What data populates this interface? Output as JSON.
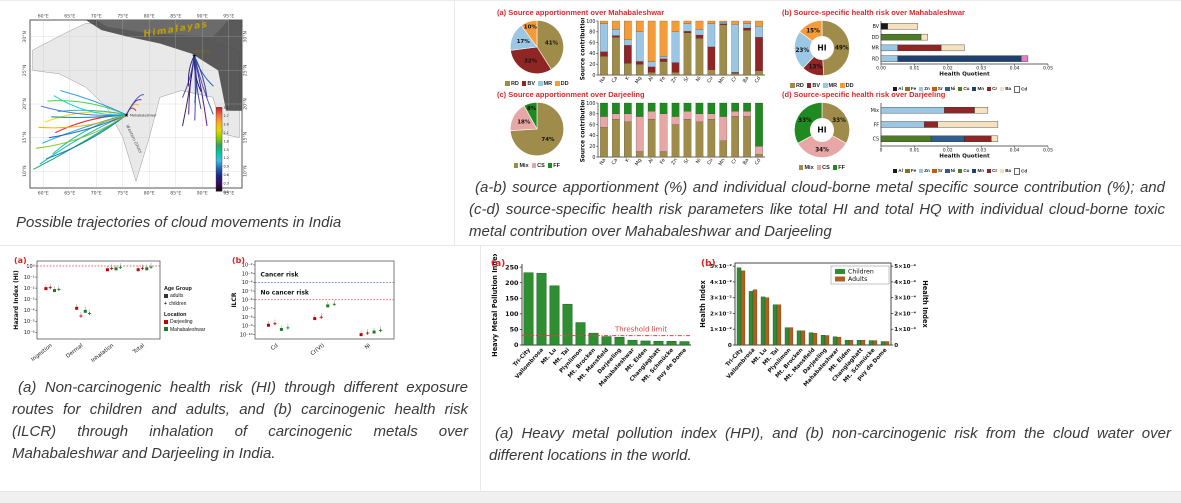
{
  "accent_red": "#e0262b",
  "panels": {
    "map": {
      "caption": "Possible trajectories of cloud movements in India"
    },
    "source": {
      "a_title": "(a)  Source apportionment over Mahabaleshwar",
      "b_title": "(b)  Source-specific health risk over Mahabaleshwar",
      "c_title": "(c)  Source apportionment over Darjeeling",
      "d_title": "(d)  Source-specific health risk over Darjeeling",
      "caption": "(a-b) source apportionment (%) and individual cloud-borne metal specific source contribution (%); and (c-d) source-specific health risk parameters like total HI and total HQ with individual cloud-borne toxic metal contribution over Mahabaleshwar and Darjeeling"
    },
    "risk": {
      "caption": "(a) Non-carcinogenic health risk (HI) through different exposure routes for children and adults, and (b) carcinogenic health risk (ILCR) through inhalation of carcinogenic metals over Mahabaleshwar and Darjeeling in India.",
      "legend": {
        "age_header": "Age Group",
        "age_items": [
          "adults",
          "children"
        ],
        "loc_header": "Location",
        "loc_items": [
          {
            "label": "Darjeeling",
            "color": "#c00000"
          },
          {
            "label": "Mahabaleshwar",
            "color": "#1e7a1e"
          }
        ]
      }
    },
    "hpi": {
      "caption": "(a) Heavy metal pollution index (HPI), and (b) non-carcinogenic risk from the cloud water over different locations in the world."
    }
  },
  "chart_data": {
    "map": {
      "type": "trajectory-map",
      "lon_ticks": [
        "60°E",
        "65°E",
        "70°E",
        "75°E",
        "80°E",
        "85°E",
        "90°E",
        "95°E"
      ],
      "lat_ticks": [
        "30°N",
        "25°N",
        "20°N",
        "15°N",
        "10°N"
      ],
      "labels": {
        "himalayas": "Himalayas",
        "darjeeling": "Darjeeling",
        "mahabaleshwar": "Mahabaleshwar",
        "western_ghats": "Western Ghats"
      },
      "colorbar": {
        "ticks": [
          "3.0",
          "2.7",
          "2.4",
          "2.1",
          "1.8",
          "1.5",
          "1.2",
          "0.9",
          "0.6",
          "0.3",
          "0.0"
        ],
        "colors": [
          "#d7191c",
          "#f46d43",
          "#fdae17",
          "#e3d800",
          "#8cce00",
          "#2ca25f",
          "#00c9a7",
          "#41b6e6",
          "#2166ac",
          "#20208a",
          "#3b0a59",
          "#0a0a0a"
        ]
      }
    },
    "src_maha": {
      "type": "pie+stacked-bar",
      "pie": {
        "labels": [
          "RD",
          "BV",
          "MR",
          "DD"
        ],
        "values": [
          41,
          32,
          17,
          10
        ],
        "colors": [
          "#a08c4a",
          "#8f2525",
          "#9cc7e4",
          "#f49c3a"
        ]
      },
      "bars": {
        "ylabel": "Source contribution",
        "ylim": [
          0,
          100
        ],
        "yticks": [
          0,
          20,
          40,
          60,
          80,
          100
        ],
        "categories": [
          "Na",
          "Ca",
          "K",
          "Mg",
          "Al",
          "Fe",
          "Zn",
          "Sr",
          "Ni",
          "Cu",
          "Mn",
          "Cr",
          "Ba",
          "Cd"
        ],
        "series": [
          {
            "name": "RD",
            "color": "#a08c4a",
            "values": [
              35,
              70,
              22,
              20,
              5,
              25,
              5,
              78,
              68,
              10,
              93,
              3,
              83,
              8
            ]
          },
          {
            "name": "BV",
            "color": "#8f2525",
            "values": [
              8,
              3,
              33,
              5,
              10,
              5,
              18,
              3,
              6,
              42,
              2,
              2,
              4,
              62
            ]
          },
          {
            "name": "MR",
            "color": "#9cc7e4",
            "values": [
              52,
              12,
              10,
              55,
              10,
              5,
              57,
              14,
              11,
              43,
              3,
              89,
              8,
              20
            ]
          },
          {
            "name": "DD",
            "color": "#f49c3a",
            "values": [
              5,
              15,
              35,
              20,
              75,
              65,
              20,
              5,
              15,
              5,
              2,
              6,
              5,
              10
            ]
          }
        ]
      }
    },
    "risk_maha": {
      "type": "donut+hbar",
      "donut": {
        "center": "HI",
        "labels": [
          "RD",
          "BV",
          "MR",
          "DD"
        ],
        "values": [
          49,
          13,
          23,
          15
        ],
        "colors": [
          "#a08c4a",
          "#8f2525",
          "#9cc7e4",
          "#f49c3a"
        ]
      },
      "hbar": {
        "xlabel": "Health Quotient",
        "xmax": 0.05,
        "tick_labels": [
          "0.00",
          "0.01",
          "0.02",
          "0.03",
          "0.04",
          "0.05"
        ],
        "rows": [
          {
            "label": "BV",
            "segs": [
              {
                "v": 0.002,
                "c": "#1a1a1a"
              },
              {
                "v": 0.009,
                "c": "#f3e1bf"
              }
            ]
          },
          {
            "label": "DD",
            "segs": [
              {
                "v": 0.012,
                "c": "#4f7a28"
              },
              {
                "v": 0.002,
                "c": "#f3e1bf"
              }
            ]
          },
          {
            "label": "MR",
            "segs": [
              {
                "v": 0.005,
                "c": "#9cc7e4"
              },
              {
                "v": 0.013,
                "c": "#8f2525"
              },
              {
                "v": 0.007,
                "c": "#f3e1bf"
              }
            ]
          },
          {
            "label": "RD",
            "segs": [
              {
                "v": 0.005,
                "c": "#9cc7e4"
              },
              {
                "v": 0.037,
                "c": "#1f3f6e"
              },
              {
                "v": 0.002,
                "c": "#e87cc0"
              }
            ]
          }
        ]
      },
      "metals": {
        "labels": [
          "Al",
          "Fe",
          "Zn",
          "Sr",
          "Ni",
          "Cu",
          "Mn",
          "Cr",
          "Ba",
          "Cd"
        ],
        "colors": [
          "#1a1a1a",
          "#8c6d1f",
          "#9cc7e4",
          "#c55a11",
          "#2e5e8c",
          "#4f7a28",
          "#1f3f6e",
          "#8f2525",
          "#f3e1bf",
          "#ffffff"
        ]
      }
    },
    "src_darj": {
      "type": "pie+stacked-bar",
      "pie": {
        "labels": [
          "Mix",
          "CS",
          "FF"
        ],
        "values": [
          74,
          18,
          8
        ],
        "colors": [
          "#a08c4a",
          "#e8a7a7",
          "#1f8a1f"
        ]
      },
      "bars": {
        "ylabel": "Source contribution",
        "ylim": [
          0,
          100
        ],
        "yticks": [
          0,
          20,
          40,
          60,
          80,
          100
        ],
        "categories": [
          "Na",
          "Ca",
          "K",
          "Mg",
          "Al",
          "Fe",
          "Zn",
          "Sr",
          "Ni",
          "Cu",
          "Mn",
          "Cr",
          "Ba",
          "Cd"
        ],
        "series": [
          {
            "name": "Mix",
            "color": "#a08c4a",
            "values": [
              55,
              70,
              65,
              10,
              70,
              10,
              60,
              70,
              65,
              70,
              30,
              75,
              75,
              5
            ]
          },
          {
            "name": "CS",
            "color": "#e8a7a7",
            "values": [
              20,
              10,
              15,
              65,
              15,
              70,
              15,
              15,
              15,
              10,
              45,
              10,
              10,
              15
            ]
          },
          {
            "name": "FF",
            "color": "#1f8a1f",
            "values": [
              25,
              20,
              20,
              25,
              15,
              20,
              25,
              15,
              20,
              20,
              25,
              15,
              15,
              80
            ]
          }
        ]
      }
    },
    "risk_darj": {
      "type": "donut+hbar",
      "donut": {
        "center": "HI",
        "labels": [
          "Mix",
          "CS",
          "FF"
        ],
        "values": [
          33,
          34,
          33
        ],
        "colors": [
          "#a08c4a",
          "#e8a7a7",
          "#1f8a1f"
        ]
      },
      "hbar": {
        "xlabel": "Health Quotient",
        "xmax": 0.05,
        "tick_labels": [
          "0",
          "0.01",
          "0.02",
          "0.03",
          "0.04",
          "0.05"
        ],
        "rows": [
          {
            "label": "Mix",
            "segs": [
              {
                "v": 0.019,
                "c": "#9cc7e4"
              },
              {
                "v": 0.009,
                "c": "#8f2525"
              },
              {
                "v": 0.004,
                "c": "#f3e1bf"
              }
            ]
          },
          {
            "label": "FF",
            "segs": [
              {
                "v": 0.013,
                "c": "#9cc7e4"
              },
              {
                "v": 0.004,
                "c": "#8f2525"
              },
              {
                "v": 0.018,
                "c": "#f3e1bf"
              }
            ]
          },
          {
            "label": "CS",
            "segs": [
              {
                "v": 0.015,
                "c": "#4f7a28"
              },
              {
                "v": 0.01,
                "c": "#2e5e8c"
              },
              {
                "v": 0.008,
                "c": "#8f2525"
              },
              {
                "v": 0.002,
                "c": "#f3e1bf"
              }
            ]
          }
        ]
      },
      "metals": {
        "labels": [
          "Al",
          "Fe",
          "Zn",
          "Sr",
          "Ni",
          "Cu",
          "Mn",
          "Cr",
          "Ba",
          "Cd"
        ],
        "colors": [
          "#1a1a1a",
          "#8c6d1f",
          "#9cc7e4",
          "#c55a11",
          "#2e5e8c",
          "#4f7a28",
          "#1f3f6e",
          "#8f2525",
          "#f3e1bf",
          "#ffffff"
        ]
      }
    },
    "hi_scatter": {
      "type": "scatter",
      "letter": "(a)",
      "ylabel": "Hazard Index (HI)",
      "emax": 0.45,
      "emin": -6.6,
      "yticks": [
        0,
        -1,
        -2,
        -3,
        -4,
        -5,
        -6
      ],
      "ytick_labels": [
        "10⁰",
        "10⁻¹",
        "10⁻²",
        "10⁻³",
        "10⁻⁴",
        "10⁻⁵",
        "10⁻⁶"
      ],
      "categories": [
        "Ingestion",
        "Dermal",
        "Inhalation",
        "Total"
      ],
      "groups": [
        {
          "name": "Darjeeling adults",
          "color": "#c00000",
          "symbol": "square",
          "dx": -0.21
        },
        {
          "name": "Darjeeling children",
          "color": "#c00000",
          "symbol": "plus",
          "dx": -0.07
        },
        {
          "name": "Mahabaleshwar adults",
          "color": "#1e7a1e",
          "symbol": "square",
          "dx": 0.07
        },
        {
          "name": "Mahabaleshwar children",
          "color": "#1e7a1e",
          "symbol": "plus",
          "dx": 0.21
        }
      ],
      "values": [
        [
          0.009,
          0.011,
          0.006,
          0.0075
        ],
        [
          0.00015,
          3e-05,
          8e-05,
          5e-05
        ],
        [
          0.45,
          0.6,
          0.55,
          0.75
        ],
        [
          0.46,
          0.62,
          0.56,
          0.78
        ]
      ],
      "lines": [
        {
          "v": 1,
          "color": "#e03a3a"
        }
      ],
      "annotations": []
    },
    "ilcr_scatter": {
      "type": "scatter",
      "letter": "(b)",
      "ylabel": "ILCR",
      "emax": -1.55,
      "emin": -10.5,
      "yticks": [
        -2,
        -3,
        -4,
        -5,
        -6,
        -7,
        -8,
        -9,
        -10
      ],
      "ytick_labels": [
        "10⁻²",
        "10⁻³",
        "10⁻⁴",
        "10⁻⁵",
        "10⁻⁶",
        "10⁻⁷",
        "10⁻⁸",
        "10⁻⁹",
        "10⁻¹⁰"
      ],
      "categories": [
        "Cd",
        "Cr(VI)",
        "Ni"
      ],
      "groups": [
        {
          "name": "Darjeeling adults",
          "color": "#c00000",
          "symbol": "square",
          "dx": -0.21
        },
        {
          "name": "Darjeeling children",
          "color": "#c00000",
          "symbol": "plus",
          "dx": -0.07
        },
        {
          "name": "Mahabaleshwar adults",
          "color": "#1e7a1e",
          "symbol": "square",
          "dx": 0.07
        },
        {
          "name": "Mahabaleshwar children",
          "color": "#1e7a1e",
          "symbol": "plus",
          "dx": 0.21
        }
      ],
      "values": [
        [
          1.2e-09,
          1.8e-09,
          4e-10,
          6e-10
        ],
        [
          7e-09,
          1e-08,
          2e-07,
          3e-07
        ],
        [
          1e-10,
          1.5e-10,
          2e-10,
          3e-10
        ]
      ],
      "lines": [
        {
          "v": 0.0001,
          "color": "#3a5fd0"
        },
        {
          "v": 1e-06,
          "color": "#e03a3a"
        }
      ],
      "annotations": [
        {
          "text": "Cancer risk",
          "v": 0.00045,
          "xf": 0.04
        },
        {
          "text": "No cancer risk",
          "v": 4.2e-06,
          "xf": 0.04
        }
      ]
    },
    "hpi": {
      "type": "bar",
      "letter": "(a)",
      "ylabel": "Heavy Metal Pollution Index",
      "ymax": 260,
      "yticks": [
        0,
        50,
        100,
        150,
        200,
        250
      ],
      "bar_color": "#2e8f32",
      "bar_edge": "#1a5c1d",
      "categories": [
        "Tri-City",
        "Vallombrosa",
        "Mt. Lu",
        "Mt. Tai",
        "Plynlimon",
        "Mt. Brocken",
        "Mt. Mansfield",
        "Darjeeling",
        "Mahabaleshwar",
        "Mt. Elden",
        "Changlaghatt",
        "Mt. Schmücke",
        "puy de Dome"
      ],
      "values": [
        232,
        230,
        190,
        131,
        72,
        38,
        27,
        25,
        15,
        13,
        12,
        12,
        11
      ],
      "threshold": {
        "value": 30,
        "label": "Threshold limit",
        "color": "#e04040"
      }
    },
    "health_index": {
      "type": "bar",
      "letter": "(b)",
      "ylabel_left": "Health Index",
      "ylabel_right": "Health Index",
      "left_max": 0.052,
      "right_max": 0.00052,
      "left_ticks": [
        "0",
        "1×10⁻²",
        "2×10⁻²",
        "3×10⁻²",
        "4×10⁻²",
        "5×10⁻²"
      ],
      "right_ticks": [
        "0",
        "1×10⁻⁴",
        "2×10⁻⁴",
        "3×10⁻⁴",
        "4×10⁻⁴",
        "5×10⁻⁴"
      ],
      "categories": [
        "Tri-City",
        "Vallombrosa",
        "Mt. Lu",
        "Mt. Tai",
        "Plynlimon",
        "Mt. Brocken",
        "Mt. Mansfield",
        "Darjeeling",
        "Mahabaleshwar",
        "Mt. Elden",
        "Changlaghatt",
        "Mt. Schmücke",
        "puy de Dome"
      ],
      "children": {
        "label": "Children",
        "color": "#2e8f32",
        "values": [
          0.049,
          0.034,
          0.0305,
          0.0255,
          0.011,
          0.009,
          0.0078,
          0.0062,
          0.0052,
          0.003,
          0.003,
          0.0028,
          0.0022
        ]
      },
      "adults": {
        "label": "Adults",
        "color": "#b05f20",
        "values": [
          0.00047,
          0.00035,
          0.0003,
          0.000255,
          0.00011,
          9e-05,
          7.5e-05,
          6e-05,
          5e-05,
          3e-05,
          3e-05,
          2.8e-05,
          2.2e-05
        ]
      }
    }
  }
}
